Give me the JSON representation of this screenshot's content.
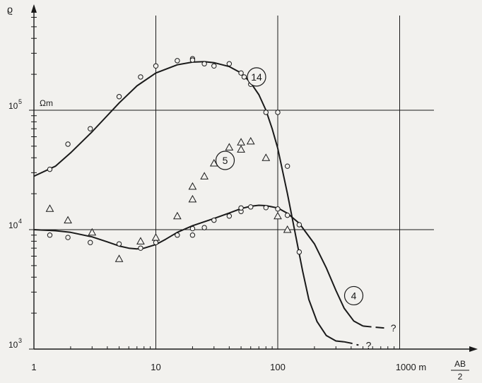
{
  "chart_data": {
    "type": "scatter",
    "title": "",
    "ylabel": "ϱ",
    "yunit": "Ωm",
    "xlabel_num": "AB",
    "xlabel_den": "2",
    "xscale": "log",
    "yscale": "log",
    "xlim": [
      1,
      2000
    ],
    "ylim": [
      1000,
      500000
    ],
    "grid": true,
    "x_ticks": [
      {
        "value": 1,
        "label": "1"
      },
      {
        "value": 10,
        "label": "10"
      },
      {
        "value": 100,
        "label": "100"
      },
      {
        "value": 1000,
        "label": "1000 m"
      }
    ],
    "y_ticks": [
      {
        "value": 1000,
        "label": "10",
        "exp": "3"
      },
      {
        "value": 10000,
        "label": "10",
        "exp": "4"
      },
      {
        "value": 100000,
        "label": "10",
        "exp": "5"
      }
    ],
    "series": [
      {
        "name": "14",
        "marker": "circle",
        "curve_dashed_from_x": null,
        "points": [
          [
            1.35,
            32000
          ],
          [
            1.9,
            52000
          ],
          [
            2.9,
            70000
          ],
          [
            5.0,
            130000
          ],
          [
            7.5,
            190000
          ],
          [
            10,
            235000
          ],
          [
            15,
            260000
          ],
          [
            20,
            270000
          ],
          [
            20,
            263000
          ],
          [
            25,
            245000
          ],
          [
            30,
            235000
          ],
          [
            40,
            245000
          ],
          [
            50,
            205000
          ],
          [
            53,
            190000
          ],
          [
            60,
            165000
          ],
          [
            80,
            96000
          ],
          [
            100,
            96000
          ],
          [
            120,
            34000
          ]
        ],
        "curve": [
          [
            1,
            28000
          ],
          [
            1.5,
            34000
          ],
          [
            2,
            44000
          ],
          [
            3,
            66000
          ],
          [
            5,
            115000
          ],
          [
            7,
            160000
          ],
          [
            10,
            205000
          ],
          [
            15,
            240000
          ],
          [
            20,
            253000
          ],
          [
            25,
            255000
          ],
          [
            30,
            250000
          ],
          [
            40,
            232000
          ],
          [
            50,
            205000
          ],
          [
            60,
            170000
          ],
          [
            70,
            135000
          ],
          [
            80,
            100000
          ],
          [
            90,
            70000
          ],
          [
            100,
            48000
          ],
          [
            120,
            20000
          ],
          [
            140,
            9000
          ],
          [
            160,
            4500
          ],
          [
            180,
            2600
          ],
          [
            210,
            1700
          ],
          [
            250,
            1300
          ],
          [
            300,
            1170
          ],
          [
            350,
            1150
          ]
        ],
        "curve_dashed": [
          [
            350,
            1150
          ],
          [
            400,
            1120
          ],
          [
            460,
            1080
          ]
        ],
        "label_pos": [
          67,
          190000
        ]
      },
      {
        "name": "5",
        "marker": "triangle",
        "points": [
          [
            1.35,
            15000
          ],
          [
            1.9,
            12000
          ],
          [
            3.0,
            9500
          ],
          [
            5.0,
            5700
          ],
          [
            7.5,
            8000
          ],
          [
            10,
            8600
          ],
          [
            15,
            13000
          ],
          [
            20,
            18000
          ],
          [
            20,
            23000
          ],
          [
            25,
            28000
          ],
          [
            30,
            36000
          ],
          [
            40,
            49000
          ],
          [
            50,
            54000
          ],
          [
            50,
            47000
          ],
          [
            60,
            55000
          ],
          [
            80,
            40000
          ],
          [
            100,
            13000
          ],
          [
            120,
            10000
          ]
        ],
        "label_pos": [
          37,
          38000
        ]
      },
      {
        "name": "4",
        "marker": "circle",
        "points": [
          [
            1.35,
            9000
          ],
          [
            1.9,
            8600
          ],
          [
            2.9,
            7800
          ],
          [
            5.0,
            7600
          ],
          [
            7.5,
            7000
          ],
          [
            10,
            7800
          ],
          [
            15,
            9000
          ],
          [
            20,
            9000
          ],
          [
            20,
            10200
          ],
          [
            25,
            10400
          ],
          [
            30,
            12000
          ],
          [
            40,
            13000
          ],
          [
            50,
            14200
          ],
          [
            50,
            15200
          ],
          [
            60,
            15500
          ],
          [
            80,
            15300
          ],
          [
            100,
            14900
          ],
          [
            120,
            13200
          ],
          [
            150,
            11000
          ],
          [
            150,
            6500
          ]
        ],
        "curve": [
          [
            1,
            10000
          ],
          [
            1.5,
            9800
          ],
          [
            2,
            9500
          ],
          [
            3,
            8700
          ],
          [
            4,
            7900
          ],
          [
            5,
            7300
          ],
          [
            6,
            7000
          ],
          [
            7,
            6900
          ],
          [
            8,
            7000
          ],
          [
            10,
            7500
          ],
          [
            12,
            8300
          ],
          [
            15,
            9500
          ],
          [
            20,
            10800
          ],
          [
            30,
            12400
          ],
          [
            40,
            13800
          ],
          [
            50,
            15000
          ],
          [
            60,
            15700
          ],
          [
            70,
            16000
          ],
          [
            80,
            15900
          ],
          [
            100,
            15200
          ],
          [
            120,
            13700
          ],
          [
            150,
            11300
          ],
          [
            200,
            7600
          ],
          [
            250,
            4800
          ],
          [
            300,
            3100
          ],
          [
            350,
            2200
          ],
          [
            420,
            1720
          ],
          [
            500,
            1560
          ]
        ],
        "curve_dashed": [
          [
            500,
            1560
          ],
          [
            650,
            1520
          ],
          [
            750,
            1500
          ]
        ],
        "label_pos": [
          420,
          2800
        ]
      }
    ],
    "annotations": [
      {
        "text": "?",
        "x": 500,
        "y": 1080
      },
      {
        "text": "?",
        "x": 800,
        "y": 1500
      }
    ]
  }
}
